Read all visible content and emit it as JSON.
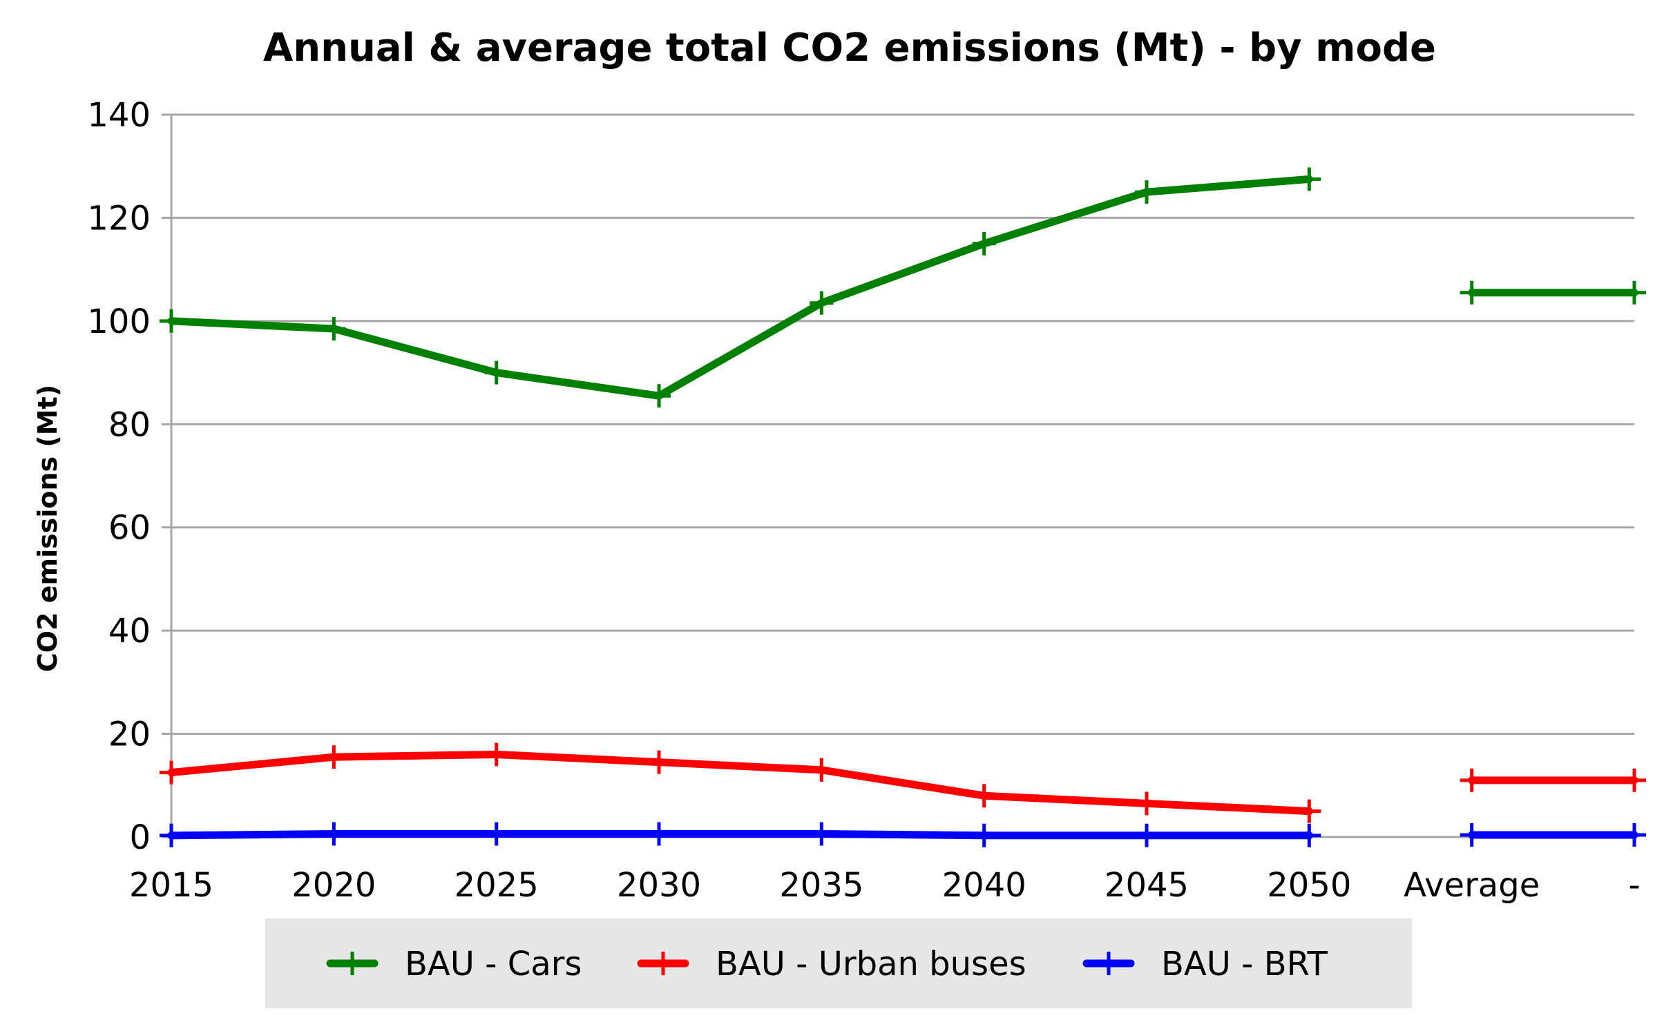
{
  "chart_data": {
    "type": "line",
    "title": "Annual & average total CO2 emissions (Mt) - by mode",
    "xlabel": "",
    "ylabel": "CO2 emissions (Mt)",
    "ylim": [
      0,
      140
    ],
    "yticks": [
      0,
      20,
      40,
      60,
      80,
      100,
      120,
      140
    ],
    "categories": [
      "2015",
      "2020",
      "2025",
      "2030",
      "2035",
      "2040",
      "2045",
      "2050",
      "Average",
      "-"
    ],
    "grid": true,
    "legend_position": "bottom",
    "series": [
      {
        "name": "BAU - Cars",
        "color": "#008000",
        "values": [
          100,
          98.5,
          90,
          85.5,
          103.5,
          115,
          125,
          127.5,
          null,
          null
        ],
        "average": [
          105.5,
          105.5
        ]
      },
      {
        "name": "BAU - Urban buses",
        "color": "#ff0000",
        "values": [
          12.5,
          15.5,
          16,
          14.5,
          13,
          8,
          6.5,
          5,
          null,
          null
        ],
        "average": [
          11,
          11
        ]
      },
      {
        "name": "BAU - BRT",
        "color": "#0000ff",
        "values": [
          0.3,
          0.6,
          0.6,
          0.6,
          0.6,
          0.3,
          0.3,
          0.3,
          null,
          null
        ],
        "average": [
          0.4,
          0.4
        ]
      }
    ]
  }
}
